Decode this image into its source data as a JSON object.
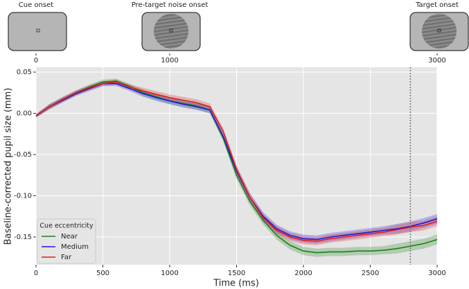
{
  "chart_data": {
    "type": "line",
    "xlabel": "Time (ms)",
    "ylabel": "Baseline-corrected pupil size (mm)",
    "events": [
      {
        "x": 0,
        "label": "Cue onset"
      },
      {
        "x": 1000,
        "label": "Pre-target noise onset"
      },
      {
        "x": 3000,
        "label": "Target onset"
      }
    ],
    "vline_x": 2800,
    "legend_title": "Cue eccentricity",
    "legend": "lower left",
    "grid": true,
    "xlim": [
      0,
      3000
    ],
    "xticks": [
      0,
      500,
      1000,
      1500,
      2000,
      2500,
      3000
    ],
    "ylim": [
      -0.1836,
      0.0559
    ],
    "yticks": [
      0.05,
      {
        "value": 0,
        "label": "0.00"
      },
      -0.05,
      {
        "value": -0.1,
        "label": "-0.10"
      },
      -0.15
    ],
    "x": [
      0,
      100,
      200,
      300,
      400,
      500,
      600,
      700,
      800,
      900,
      1000,
      1100,
      1200,
      1300,
      1400,
      1500,
      1600,
      1700,
      1800,
      1900,
      2000,
      2100,
      2200,
      2300,
      2400,
      2500,
      2600,
      2700,
      2800,
      2900,
      3000
    ],
    "series": [
      {
        "name": "Near",
        "color": "#1a7f1a",
        "values": [
          -0.003,
          0.008,
          0.017,
          0.025,
          0.032,
          0.038,
          0.039,
          0.033,
          0.025,
          0.02,
          0.015,
          0.012,
          0.009,
          0.004,
          -0.03,
          -0.075,
          -0.107,
          -0.13,
          -0.148,
          -0.16,
          -0.167,
          -0.169,
          -0.168,
          -0.168,
          -0.167,
          -0.167,
          -0.166,
          -0.164,
          -0.161,
          -0.158,
          -0.153
        ],
        "errors": [
          0.002,
          0.003,
          0.003,
          0.003,
          0.003,
          0.003,
          0.003,
          0.003,
          0.004,
          0.004,
          0.004,
          0.004,
          0.004,
          0.004,
          0.004,
          0.005,
          0.005,
          0.005,
          0.005,
          0.005,
          0.005,
          0.005,
          0.005,
          0.005,
          0.005,
          0.005,
          0.005,
          0.006,
          0.006,
          0.006,
          0.006
        ]
      },
      {
        "name": "Medium",
        "color": "#1a1adb",
        "values": [
          -0.003,
          0.008,
          0.016,
          0.024,
          0.03,
          0.036,
          0.036,
          0.03,
          0.024,
          0.019,
          0.015,
          0.011,
          0.008,
          0.004,
          -0.028,
          -0.07,
          -0.102,
          -0.125,
          -0.14,
          -0.148,
          -0.152,
          -0.153,
          -0.15,
          -0.148,
          -0.146,
          -0.144,
          -0.142,
          -0.14,
          -0.137,
          -0.133,
          -0.128
        ],
        "errors": [
          0.002,
          0.003,
          0.003,
          0.003,
          0.003,
          0.003,
          0.003,
          0.003,
          0.004,
          0.004,
          0.004,
          0.004,
          0.004,
          0.004,
          0.004,
          0.005,
          0.005,
          0.005,
          0.005,
          0.005,
          0.005,
          0.005,
          0.005,
          0.005,
          0.005,
          0.005,
          0.005,
          0.006,
          0.006,
          0.006,
          0.006
        ]
      },
      {
        "name": "Far",
        "color": "#e01a1a",
        "values": [
          -0.003,
          0.008,
          0.017,
          0.025,
          0.031,
          0.036,
          0.038,
          0.032,
          0.027,
          0.023,
          0.019,
          0.016,
          0.013,
          0.008,
          -0.022,
          -0.068,
          -0.102,
          -0.127,
          -0.142,
          -0.15,
          -0.154,
          -0.155,
          -0.152,
          -0.15,
          -0.148,
          -0.146,
          -0.144,
          -0.141,
          -0.138,
          -0.136,
          -0.131
        ],
        "errors": [
          0.002,
          0.003,
          0.003,
          0.003,
          0.003,
          0.003,
          0.003,
          0.003,
          0.004,
          0.004,
          0.004,
          0.004,
          0.004,
          0.004,
          0.004,
          0.005,
          0.005,
          0.005,
          0.005,
          0.005,
          0.005,
          0.005,
          0.005,
          0.005,
          0.005,
          0.005,
          0.005,
          0.006,
          0.006,
          0.006,
          0.006
        ]
      }
    ]
  }
}
